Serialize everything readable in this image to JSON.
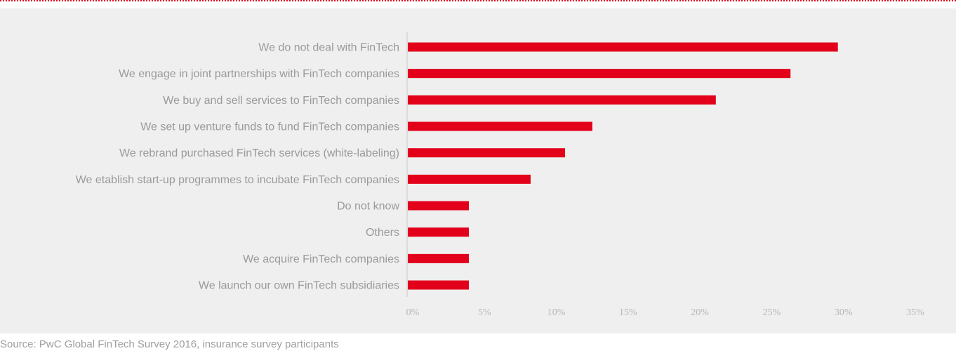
{
  "chart_data": {
    "type": "bar",
    "orientation": "horizontal",
    "categories": [
      "We do not deal with FinTech",
      "We engage in joint partnerships with FinTech companies",
      "We buy and sell services to FinTech companies",
      "We set up venture funds to fund FinTech companies",
      "We rebrand purchased FinTech services (white-labeling)",
      "We etablish start-up programmes to incubate FinTech companies",
      "Do not know",
      "Others",
      "We acquire FinTech companies",
      "We launch our own FinTech subsidiaries"
    ],
    "values": [
      30,
      26.7,
      21.5,
      12.9,
      11,
      8.6,
      4.3,
      4.3,
      4.3,
      4.3
    ],
    "x_ticks": [
      "0%",
      "5%",
      "10%",
      "15%",
      "20%",
      "25%",
      "30%",
      "35%"
    ],
    "xlim": [
      0,
      35
    ],
    "grid": false,
    "colors": {
      "bar": "#e2001a",
      "label": "#9a9a9a",
      "tick": "#b7b7b7",
      "panel": "#efefef",
      "accent_rule": "#e2001a"
    }
  },
  "source_note": "Source: PwC Global FinTech Survey 2016, insurance survey participants"
}
